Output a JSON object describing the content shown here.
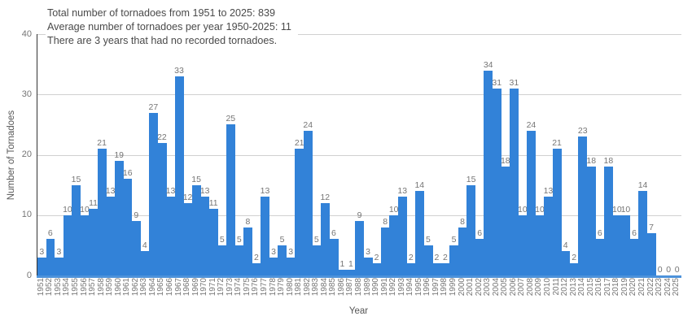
{
  "colors": {
    "background": "#ffffff",
    "bar": "#3282d8",
    "grid": "#d0d0d0",
    "y_axis": "#333333",
    "x_axis": "#4d92da",
    "tick_label": "#757575",
    "value_label": "#757575",
    "axis_title": "#555555",
    "annotation_text": "#4a4a4a"
  },
  "chart_data": {
    "type": "bar",
    "title": "",
    "xlabel": "Year",
    "ylabel": "Number of Tornadoes",
    "ylim": [
      0,
      40
    ],
    "yticks": [
      0,
      10,
      20,
      30,
      40
    ],
    "grid": true,
    "legend": false,
    "bar_color": "#3282d8",
    "annotations": [
      "Total number of tornadoes from 1951 to 2025: 839",
      "Average number of tornadoes per year 1950-2025: 11",
      "There are 3 years that had no recorded tornadoes."
    ],
    "categories": [
      "1951",
      "1952",
      "1953",
      "1954",
      "1955",
      "1956",
      "1957",
      "1958",
      "1959",
      "1960",
      "1961",
      "1962",
      "1963",
      "1964",
      "1965",
      "1966",
      "1967",
      "1968",
      "1969",
      "1970",
      "1971",
      "1972",
      "1973",
      "1974",
      "1975",
      "1976",
      "1977",
      "1978",
      "1979",
      "1980",
      "1981",
      "1982",
      "1983",
      "1984",
      "1985",
      "1986",
      "1987",
      "1988",
      "1989",
      "1990",
      "1991",
      "1992",
      "1993",
      "1994",
      "1995",
      "1996",
      "1997",
      "1998",
      "1999",
      "2000",
      "2001",
      "2002",
      "2003",
      "2004",
      "2005",
      "2006",
      "2007",
      "2008",
      "2009",
      "2010",
      "2011",
      "2012",
      "2013",
      "2014",
      "2015",
      "2016",
      "2017",
      "2018",
      "2019",
      "2020",
      "2021",
      "2022",
      "2023",
      "2024",
      "2025"
    ],
    "values": [
      3,
      6,
      3,
      10,
      15,
      10,
      11,
      21,
      13,
      19,
      16,
      9,
      4,
      27,
      22,
      13,
      33,
      12,
      15,
      13,
      11,
      5,
      25,
      5,
      8,
      2,
      13,
      3,
      5,
      3,
      21,
      24,
      5,
      12,
      6,
      1,
      1,
      9,
      3,
      2,
      8,
      10,
      13,
      2,
      14,
      5,
      2,
      2,
      5,
      8,
      15,
      6,
      34,
      31,
      18,
      31,
      10,
      24,
      10,
      13,
      21,
      4,
      2,
      23,
      18,
      6,
      18,
      10,
      10,
      6,
      14,
      7,
      0,
      0,
      0
    ]
  }
}
